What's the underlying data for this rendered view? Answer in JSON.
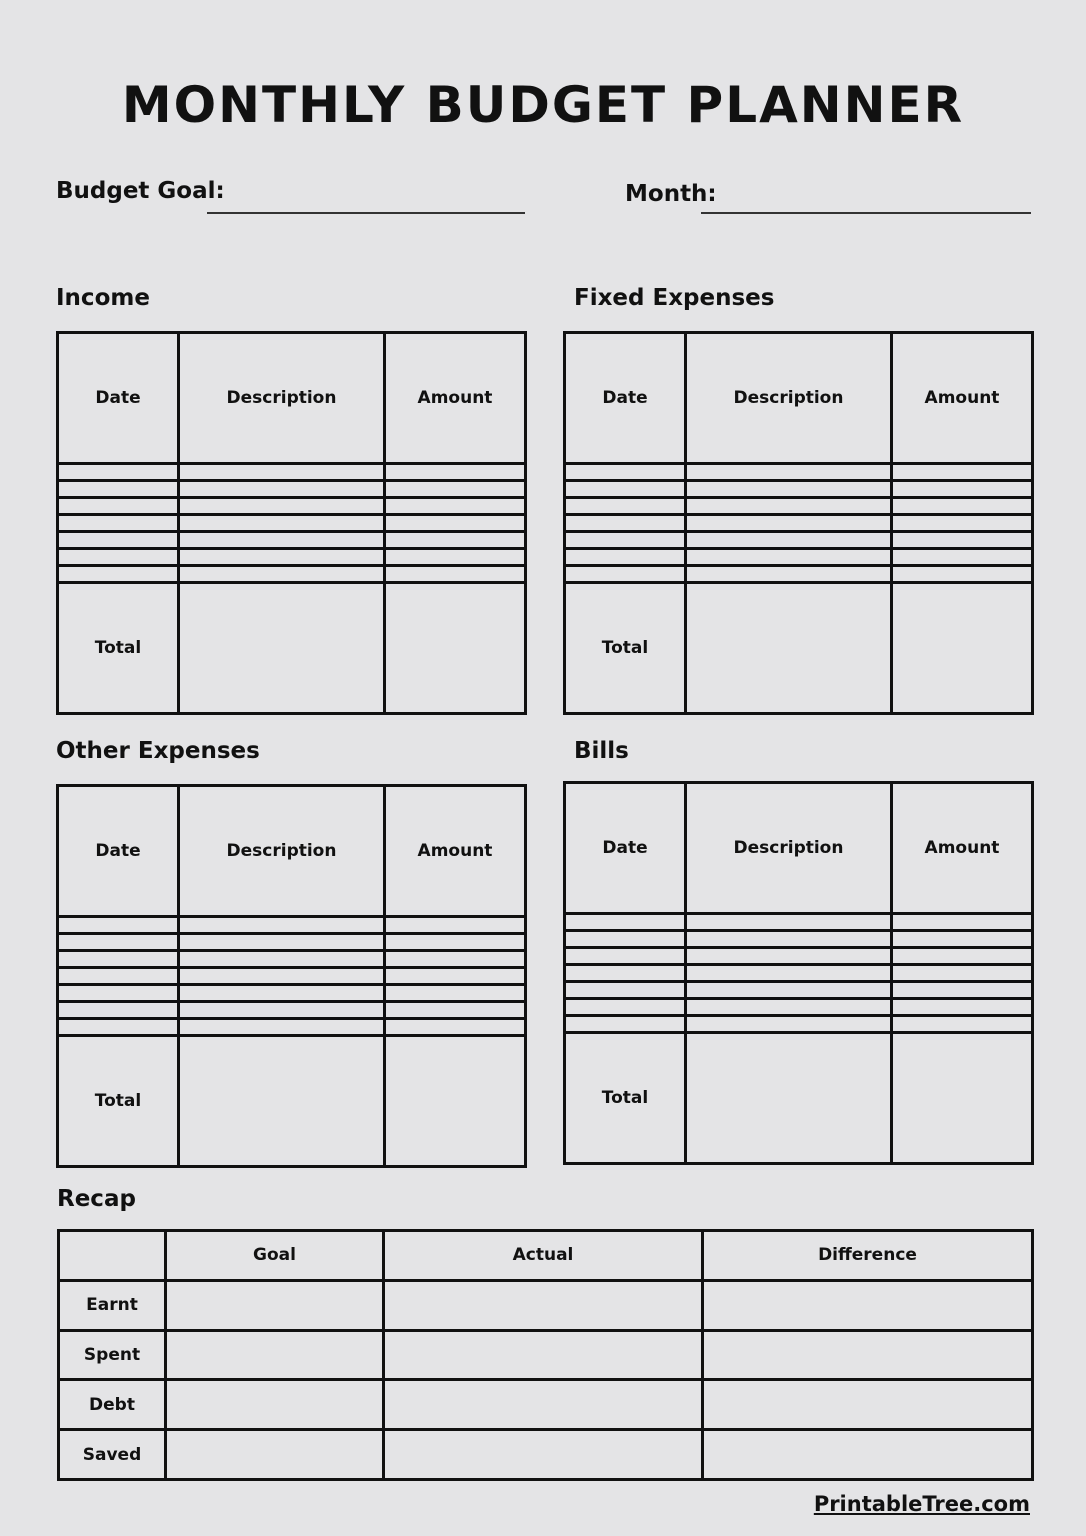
{
  "title": "MONTHLY BUDGET PLANNER",
  "budget_goal_label": "Budget Goal:",
  "month_label": "Month:",
  "sections": {
    "income": {
      "title": "Income",
      "headers": [
        "Date",
        "Description",
        "Amount"
      ],
      "total_label": "Total"
    },
    "fixed": {
      "title": "Fixed Expenses",
      "headers": [
        "Date",
        "Description",
        "Amount"
      ],
      "total_label": "Total"
    },
    "other": {
      "title": "Other Expenses",
      "headers": [
        "Date",
        "Description",
        "Amount"
      ],
      "total_label": "Total"
    },
    "bills": {
      "title": "Bills",
      "headers": [
        "Date",
        "Description",
        "Amount"
      ],
      "total_label": "Total"
    }
  },
  "recap": {
    "title": "Recap",
    "headers": [
      "",
      "Goal",
      "Actual",
      "Difference"
    ],
    "rows": [
      "Earnt",
      "Spent",
      "Debt",
      "Saved"
    ]
  },
  "footer": "PrintableTree.com"
}
